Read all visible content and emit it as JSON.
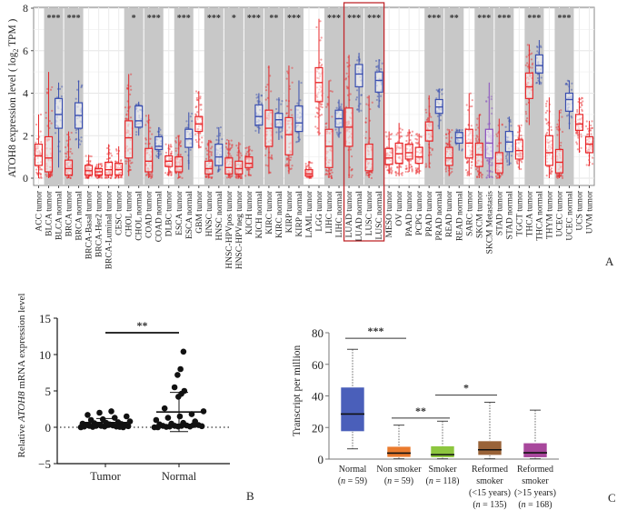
{
  "panel_letters": {
    "a": "A",
    "b": "B",
    "c": "C"
  },
  "chart_data": [
    {
      "id": "A",
      "type": "box",
      "title": "",
      "ylabel": "ATOH8 expression level ( log2 TPM )",
      "ylabel_parts": {
        "pre": "ATOH8 expression level ( log",
        "sub": "2",
        "post": " TPM )"
      },
      "xlabel": "",
      "ylim": [
        0,
        8
      ],
      "yticks": [
        0,
        2,
        4,
        6,
        8
      ],
      "grid": true,
      "highlight_box": [
        "LUAD tumor",
        "LUSC normal"
      ],
      "colors": {
        "tumor": "#e8282b",
        "normal": "#3a4fb0",
        "metastasis": "#8a4fc0",
        "shade": "#c8c8c8",
        "highlight": "#c0282d"
      },
      "categories": [
        {
          "label": "ACC tumor",
          "kind": "tumor",
          "median": 1.05,
          "q1": 0.6,
          "q3": 1.6,
          "lo": 0.0,
          "hi": 3.0
        },
        {
          "label": "BLCA tumor",
          "kind": "tumor",
          "median": 0.95,
          "q1": 0.3,
          "q3": 1.95,
          "lo": 0.0,
          "hi": 5.0
        },
        {
          "label": "BLCA normal",
          "kind": "normal",
          "median": 3.0,
          "q1": 2.35,
          "q3": 3.75,
          "lo": 0.5,
          "hi": 4.5
        },
        {
          "label": "BRCA tumor",
          "kind": "tumor",
          "median": 0.45,
          "q1": 0.15,
          "q3": 0.85,
          "lo": 0.0,
          "hi": 2.2
        },
        {
          "label": "BRCA normal",
          "kind": "normal",
          "median": 2.95,
          "q1": 2.35,
          "q3": 3.55,
          "lo": 1.4,
          "hi": 4.6
        },
        {
          "label": "BRCA-Basal tumor",
          "kind": "tumor",
          "median": 0.35,
          "q1": 0.15,
          "q3": 0.6,
          "lo": 0.0,
          "hi": 1.1
        },
        {
          "label": "BRCA-Her2 tumor",
          "kind": "tumor",
          "median": 0.3,
          "q1": 0.15,
          "q3": 0.45,
          "lo": 0.0,
          "hi": 0.7
        },
        {
          "label": "BRCA-Luminal tumor",
          "kind": "tumor",
          "median": 0.4,
          "q1": 0.15,
          "q3": 0.75,
          "lo": 0.0,
          "hi": 1.6
        },
        {
          "label": "CESC tumor",
          "kind": "tumor",
          "median": 0.4,
          "q1": 0.15,
          "q3": 0.7,
          "lo": 0.0,
          "hi": 1.5
        },
        {
          "label": "CHOL tumor",
          "kind": "tumor",
          "median": 1.9,
          "q1": 0.95,
          "q3": 2.7,
          "lo": 0.1,
          "hi": 4.9
        },
        {
          "label": "CHOL normal",
          "kind": "normal",
          "median": 2.7,
          "q1": 2.4,
          "q3": 3.4,
          "lo": 2.0,
          "hi": 3.6
        },
        {
          "label": "COAD tumor",
          "kind": "tumor",
          "median": 0.8,
          "q1": 0.3,
          "q3": 1.4,
          "lo": 0.0,
          "hi": 3.0
        },
        {
          "label": "COAD normal",
          "kind": "normal",
          "median": 1.5,
          "q1": 1.35,
          "q3": 1.95,
          "lo": 0.9,
          "hi": 2.4
        },
        {
          "label": "DLBC tumor",
          "kind": "tumor",
          "median": 0.8,
          "q1": 0.55,
          "q3": 1.05,
          "lo": 0.1,
          "hi": 1.6
        },
        {
          "label": "ESCA tumor",
          "kind": "tumor",
          "median": 0.55,
          "q1": 0.3,
          "q3": 1.0,
          "lo": 0.0,
          "hi": 2.0
        },
        {
          "label": "ESCA normal",
          "kind": "normal",
          "median": 1.85,
          "q1": 1.45,
          "q3": 2.3,
          "lo": 0.4,
          "hi": 3.1
        },
        {
          "label": "GBM tumor",
          "kind": "tumor",
          "median": 2.55,
          "q1": 2.2,
          "q3": 2.9,
          "lo": 1.4,
          "hi": 4.1
        },
        {
          "label": "HNSC tumor",
          "kind": "tumor",
          "median": 0.45,
          "q1": 0.2,
          "q3": 0.8,
          "lo": 0.0,
          "hi": 1.8
        },
        {
          "label": "HNSC normal",
          "kind": "normal",
          "median": 1.0,
          "q1": 0.6,
          "q3": 1.6,
          "lo": 0.3,
          "hi": 2.4
        },
        {
          "label": "HNSC-HPVpos tumor",
          "kind": "tumor",
          "median": 0.5,
          "q1": 0.2,
          "q3": 0.95,
          "lo": 0.0,
          "hi": 1.8
        },
        {
          "label": "HNSC-HPVneg tumor",
          "kind": "tumor",
          "median": 0.45,
          "q1": 0.2,
          "q3": 0.8,
          "lo": 0.0,
          "hi": 1.7
        },
        {
          "label": "KICH tumor",
          "kind": "tumor",
          "median": 0.7,
          "q1": 0.5,
          "q3": 1.0,
          "lo": 0.1,
          "hi": 1.5
        },
        {
          "label": "KICH normal",
          "kind": "normal",
          "median": 2.9,
          "q1": 2.5,
          "q3": 3.45,
          "lo": 2.1,
          "hi": 4.0
        },
        {
          "label": "KIRC tumor",
          "kind": "tumor",
          "median": 2.35,
          "q1": 1.5,
          "q3": 3.2,
          "lo": 0.2,
          "hi": 5.3
        },
        {
          "label": "KIRC normal",
          "kind": "normal",
          "median": 2.75,
          "q1": 2.4,
          "q3": 3.05,
          "lo": 1.8,
          "hi": 3.8
        },
        {
          "label": "KIRP tumor",
          "kind": "tumor",
          "median": 2.05,
          "q1": 1.1,
          "q3": 2.85,
          "lo": 0.2,
          "hi": 5.3
        },
        {
          "label": "KIRP normal",
          "kind": "normal",
          "median": 2.6,
          "q1": 2.2,
          "q3": 3.4,
          "lo": 1.7,
          "hi": 4.6
        },
        {
          "label": "LAML tumor",
          "kind": "tumor",
          "median": 0.2,
          "q1": 0.1,
          "q3": 0.4,
          "lo": 0.0,
          "hi": 0.8
        },
        {
          "label": "LGG tumor",
          "kind": "tumor",
          "median": 4.5,
          "q1": 3.6,
          "q3": 5.2,
          "lo": 2.0,
          "hi": 7.5
        },
        {
          "label": "LIHC tumor",
          "kind": "tumor",
          "median": 1.5,
          "q1": 0.5,
          "q3": 2.3,
          "lo": 0.0,
          "hi": 4.6
        },
        {
          "label": "LIHC normal",
          "kind": "normal",
          "median": 2.8,
          "q1": 2.4,
          "q3": 3.2,
          "lo": 1.9,
          "hi": 3.7
        },
        {
          "label": "LUAD tumor",
          "kind": "tumor",
          "median": 2.4,
          "q1": 1.5,
          "q3": 3.3,
          "lo": 0.0,
          "hi": 5.8
        },
        {
          "label": "LUAD normal",
          "kind": "normal",
          "median": 4.9,
          "q1": 4.3,
          "q3": 5.35,
          "lo": 3.1,
          "hi": 5.9
        },
        {
          "label": "LUSC tumor",
          "kind": "tumor",
          "median": 0.9,
          "q1": 0.35,
          "q3": 1.6,
          "lo": 0.0,
          "hi": 3.9
        },
        {
          "label": "LUSC normal",
          "kind": "normal",
          "median": 4.6,
          "q1": 4.05,
          "q3": 5.0,
          "lo": 3.3,
          "hi": 5.6
        },
        {
          "label": "MESO tumor",
          "kind": "tumor",
          "median": 0.95,
          "q1": 0.65,
          "q3": 1.4,
          "lo": 0.2,
          "hi": 2.2
        },
        {
          "label": "OV tumor",
          "kind": "tumor",
          "median": 1.15,
          "q1": 0.7,
          "q3": 1.65,
          "lo": 0.1,
          "hi": 2.6
        },
        {
          "label": "PAAD tumor",
          "kind": "tumor",
          "median": 1.2,
          "q1": 0.9,
          "q3": 1.6,
          "lo": 0.3,
          "hi": 2.3
        },
        {
          "label": "PCPG tumor",
          "kind": "tumor",
          "median": 1.0,
          "q1": 0.7,
          "q3": 1.45,
          "lo": 0.2,
          "hi": 2.1
        },
        {
          "label": "PRAD tumor",
          "kind": "tumor",
          "median": 2.25,
          "q1": 1.75,
          "q3": 2.65,
          "lo": 0.5,
          "hi": 3.9
        },
        {
          "label": "PRAD normal",
          "kind": "normal",
          "median": 3.35,
          "q1": 3.05,
          "q3": 3.7,
          "lo": 2.3,
          "hi": 4.2
        },
        {
          "label": "READ tumor",
          "kind": "tumor",
          "median": 0.95,
          "q1": 0.6,
          "q3": 1.45,
          "lo": 0.1,
          "hi": 2.3
        },
        {
          "label": "READ normal",
          "kind": "normal",
          "median": 1.9,
          "q1": 1.65,
          "q3": 2.15,
          "lo": 1.3,
          "hi": 2.3
        },
        {
          "label": "SARC tumor",
          "kind": "tumor",
          "median": 1.65,
          "q1": 0.95,
          "q3": 2.3,
          "lo": 0.1,
          "hi": 4.0
        },
        {
          "label": "SKCM tumor",
          "kind": "tumor",
          "median": 1.1,
          "q1": 0.55,
          "q3": 1.65,
          "lo": 0.0,
          "hi": 3.0
        },
        {
          "label": "SKCM Metastasis",
          "kind": "metastasis",
          "median": 1.65,
          "q1": 0.95,
          "q3": 2.3,
          "lo": 0.0,
          "hi": 4.5
        },
        {
          "label": "STAD tumor",
          "kind": "tumor",
          "median": 0.7,
          "q1": 0.25,
          "q3": 1.2,
          "lo": 0.0,
          "hi": 2.8
        },
        {
          "label": "STAD normal",
          "kind": "normal",
          "median": 1.7,
          "q1": 1.25,
          "q3": 2.2,
          "lo": 0.6,
          "hi": 2.9
        },
        {
          "label": "TGCT tumor",
          "kind": "tumor",
          "median": 1.3,
          "q1": 0.9,
          "q3": 1.8,
          "lo": 0.4,
          "hi": 2.5
        },
        {
          "label": "THCA tumor",
          "kind": "tumor",
          "median": 4.3,
          "q1": 3.75,
          "q3": 4.95,
          "lo": 2.5,
          "hi": 6.3
        },
        {
          "label": "THCA normal",
          "kind": "normal",
          "median": 5.3,
          "q1": 4.95,
          "q3": 5.8,
          "lo": 4.4,
          "hi": 6.5
        },
        {
          "label": "THYM tumor",
          "kind": "tumor",
          "median": 1.2,
          "q1": 0.6,
          "q3": 2.0,
          "lo": 0.0,
          "hi": 3.8
        },
        {
          "label": "UCEC tumor",
          "kind": "tumor",
          "median": 0.75,
          "q1": 0.25,
          "q3": 1.35,
          "lo": 0.0,
          "hi": 3.2
        },
        {
          "label": "UCEC normal",
          "kind": "normal",
          "median": 3.7,
          "q1": 3.15,
          "q3": 4.0,
          "lo": 2.3,
          "hi": 4.6
        },
        {
          "label": "UCS tumor",
          "kind": "tumor",
          "median": 2.55,
          "q1": 2.25,
          "q3": 3.0,
          "lo": 1.2,
          "hi": 3.8
        },
        {
          "label": "UVM tumor",
          "kind": "tumor",
          "median": 1.6,
          "q1": 1.2,
          "q3": 1.95,
          "lo": 0.6,
          "hi": 2.7
        }
      ],
      "significance_groups": [
        {
          "start": 1,
          "end": 2,
          "label": "***"
        },
        {
          "start": 3,
          "end": 4,
          "label": "***"
        },
        {
          "start": 9,
          "end": 10,
          "label": "*"
        },
        {
          "start": 11,
          "end": 12,
          "label": "***"
        },
        {
          "start": 14,
          "end": 15,
          "label": "***"
        },
        {
          "start": 17,
          "end": 18,
          "label": "***"
        },
        {
          "start": 19,
          "end": 20,
          "label": "*"
        },
        {
          "start": 21,
          "end": 22,
          "label": "***"
        },
        {
          "start": 23,
          "end": 24,
          "label": "**"
        },
        {
          "start": 25,
          "end": 26,
          "label": "***"
        },
        {
          "start": 29,
          "end": 30,
          "label": "***"
        },
        {
          "start": 31,
          "end": 32,
          "label": "***"
        },
        {
          "start": 33,
          "end": 34,
          "label": "***"
        },
        {
          "start": 39,
          "end": 40,
          "label": "***"
        },
        {
          "start": 41,
          "end": 42,
          "label": "**"
        },
        {
          "start": 44,
          "end": 45,
          "label": "***"
        },
        {
          "start": 46,
          "end": 47,
          "label": "***"
        },
        {
          "start": 49,
          "end": 50,
          "label": "***"
        },
        {
          "start": 52,
          "end": 53,
          "label": "***"
        }
      ]
    },
    {
      "id": "B",
      "type": "scatter",
      "title": "",
      "ylabel_parts": {
        "pre": "Relative ",
        "italic": "ATOH8",
        "post": " mRNA expression level"
      },
      "ylabel": "Relative ATOH8 mRNA expression level",
      "xlabel": "",
      "categories": [
        "Tumor",
        "Normal"
      ],
      "ylim": [
        -5,
        15
      ],
      "yticks": [
        -5,
        0,
        5,
        10,
        15
      ],
      "reference_line": 0,
      "significance": {
        "between": [
          "Tumor",
          "Normal"
        ],
        "label": "**",
        "y": 13
      },
      "series": [
        {
          "name": "Tumor",
          "mean": 0.65,
          "sd_upper": 1.2,
          "sd_lower": 0.1,
          "values": [
            0.0,
            0.05,
            0.1,
            0.1,
            0.15,
            0.2,
            0.2,
            0.25,
            0.3,
            0.3,
            0.35,
            0.4,
            0.45,
            0.5,
            0.55,
            0.6,
            0.7,
            0.8,
            1.0,
            1.1,
            1.3,
            1.5,
            1.7,
            2.0,
            2.2,
            0.0,
            0.1,
            0.2,
            0.3,
            0.05
          ]
        },
        {
          "name": "Normal",
          "mean": 2.1,
          "sd_upper": 4.8,
          "sd_lower": -0.6,
          "values": [
            0.0,
            0.05,
            0.1,
            0.1,
            0.15,
            0.2,
            0.2,
            0.25,
            0.3,
            0.4,
            0.5,
            0.6,
            0.8,
            1.0,
            1.3,
            1.5,
            1.8,
            2.2,
            2.6,
            4.2,
            4.6,
            5.0,
            5.5,
            7.2,
            8.0,
            10.4,
            0.0,
            0.1,
            0.2,
            0.3
          ]
        }
      ]
    },
    {
      "id": "C",
      "type": "box",
      "title": "",
      "ylabel": "Transcript per million",
      "xlabel": "",
      "ylim": [
        0,
        80
      ],
      "yticks": [
        0,
        20,
        40,
        60,
        80
      ],
      "categories": [
        {
          "lines": [
            "Normal",
            "(n = 59)"
          ],
          "n": 59,
          "color": "#4a5fba",
          "median": 28.5,
          "q1": 17.5,
          "q3": 45.5,
          "lo": 6.5,
          "hi": 69.5
        },
        {
          "lines": [
            "Non smoker",
            "(n = 59)"
          ],
          "n": 59,
          "color": "#ea7b2e",
          "median": 3.8,
          "q1": 1.2,
          "q3": 8.0,
          "lo": 0.2,
          "hi": 21.5
        },
        {
          "lines": [
            "Smoker",
            "(n = 118)"
          ],
          "n": 118,
          "color": "#8dc63f",
          "median": 2.8,
          "q1": 1.0,
          "q3": 8.3,
          "lo": 0.2,
          "hi": 24.0
        },
        {
          "lines": [
            "Reformed",
            "smoker",
            "(<15 years)",
            "(n = 135)"
          ],
          "n": 135,
          "color": "#9a6338",
          "median": 5.9,
          "q1": 2.5,
          "q3": 11.5,
          "lo": 0.2,
          "hi": 36.0
        },
        {
          "lines": [
            "Reformed",
            "smoker",
            "(>15 years)",
            "(n = 168)"
          ],
          "n": 168,
          "color": "#a8479c",
          "median": 4.0,
          "q1": 1.0,
          "q3": 10.2,
          "lo": 0.2,
          "hi": 31.0
        }
      ],
      "significance": [
        {
          "from": 0,
          "to": 1,
          "label": "***",
          "y": 76.5
        },
        {
          "from": 1,
          "to": 2,
          "label": "**",
          "y": 26.0
        },
        {
          "from": 2,
          "to": 3,
          "label": "*",
          "y": 40.5
        }
      ]
    }
  ]
}
